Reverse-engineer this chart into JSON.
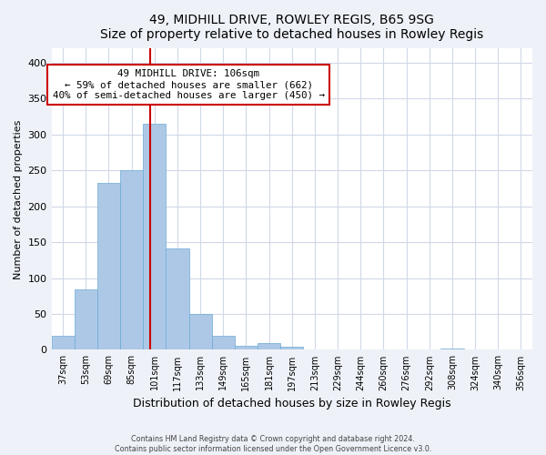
{
  "title": "49, MIDHILL DRIVE, ROWLEY REGIS, B65 9SG",
  "subtitle": "Size of property relative to detached houses in Rowley Regis",
  "xlabel": "Distribution of detached houses by size in Rowley Regis",
  "ylabel": "Number of detached properties",
  "bin_labels": [
    "37sqm",
    "53sqm",
    "69sqm",
    "85sqm",
    "101sqm",
    "117sqm",
    "133sqm",
    "149sqm",
    "165sqm",
    "181sqm",
    "197sqm",
    "213sqm",
    "229sqm",
    "244sqm",
    "260sqm",
    "276sqm",
    "292sqm",
    "308sqm",
    "324sqm",
    "340sqm",
    "356sqm"
  ],
  "bar_values": [
    19,
    84,
    233,
    250,
    315,
    141,
    50,
    20,
    5,
    10,
    4,
    0,
    1,
    0,
    0,
    0,
    0,
    2,
    0,
    0,
    0
  ],
  "bar_color": "#adc8e6",
  "bar_edge_color": "#6aaad4",
  "ylim": [
    0,
    420
  ],
  "yticks": [
    0,
    50,
    100,
    150,
    200,
    250,
    300,
    350,
    400
  ],
  "annotation_line1": "49 MIDHILL DRIVE: 106sqm",
  "annotation_line2": "← 59% of detached houses are smaller (662)",
  "annotation_line3": "40% of semi-detached houses are larger (450) →",
  "red_line_x": 3.8125,
  "footer_line1": "Contains HM Land Registry data © Crown copyright and database right 2024.",
  "footer_line2": "Contains public sector information licensed under the Open Government Licence v3.0.",
  "background_color": "#eef2f8",
  "plot_background_color": "#ffffff",
  "grid_color": "#d0d8e8"
}
